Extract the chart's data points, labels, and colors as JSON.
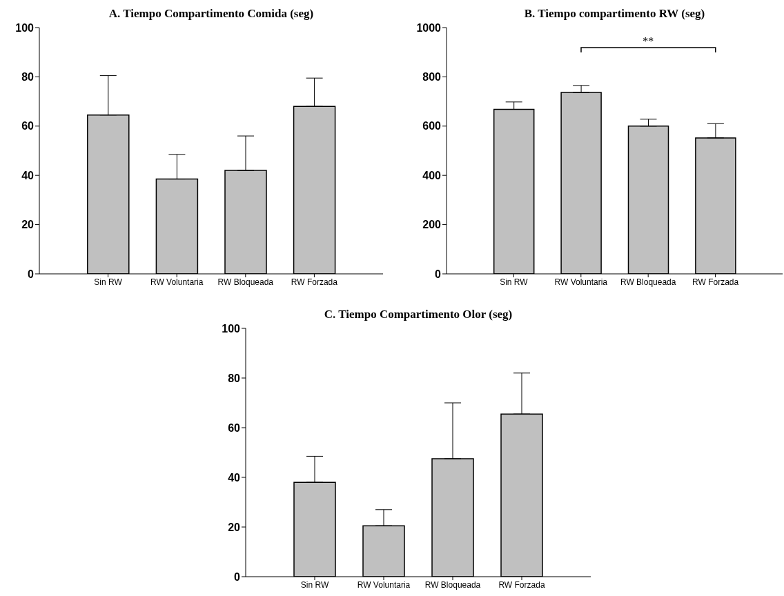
{
  "chart_data": [
    {
      "type": "bar",
      "title": "A. Tiempo Compartimento Comida (seg)",
      "categories": [
        "Sin RW",
        "RW Voluntaria",
        "RW Bloqueada",
        "RW Forzada"
      ],
      "values": [
        64.5,
        38.5,
        42,
        68
      ],
      "errors": [
        [
          64.5,
          80.5
        ],
        [
          38.5,
          48.5
        ],
        [
          42,
          56
        ],
        [
          68,
          79.5
        ]
      ],
      "color": "#c0c0c0",
      "ylim": [
        0,
        100
      ],
      "yticks": [
        0,
        20,
        40,
        60,
        80,
        100
      ]
    },
    {
      "type": "bar",
      "title": "B. Tiempo compartimento RW (seg)",
      "categories": [
        "Sin RW",
        "RW Voluntaria",
        "RW Bloqueada",
        "RW Forzada"
      ],
      "values": [
        668,
        737,
        600,
        552
      ],
      "errors": [
        [
          668,
          698
        ],
        [
          737,
          765
        ],
        [
          600,
          628
        ],
        [
          552,
          610
        ]
      ],
      "color": "#c0c0c0",
      "ylim": [
        0,
        1000
      ],
      "yticks": [
        0,
        200,
        400,
        600,
        800,
        1000
      ],
      "annotations": [
        "**"
      ]
    },
    {
      "type": "bar",
      "title": "C. Tiempo Compartimento Olor (seg)",
      "categories": [
        "Sin RW",
        "RW Voluntaria",
        "RW Bloqueada",
        "RW Forzada"
      ],
      "values": [
        38,
        20.5,
        47.5,
        65.5
      ],
      "errors": [
        [
          38,
          48.5
        ],
        [
          20.5,
          27
        ],
        [
          47.5,
          70
        ],
        [
          65.5,
          82
        ]
      ],
      "color": "#c0c0c0",
      "ylim": [
        0,
        100
      ],
      "yticks": [
        0,
        20,
        40,
        60,
        80,
        100
      ]
    }
  ]
}
